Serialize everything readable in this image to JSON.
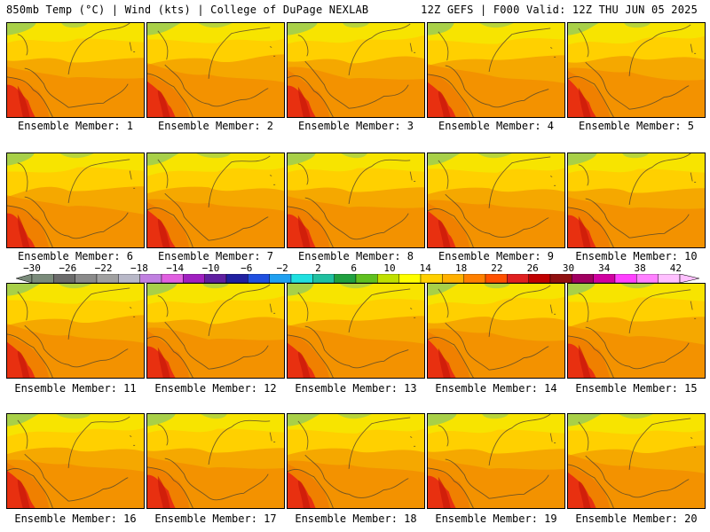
{
  "header": {
    "left": "850mb Temp (°C) | Wind (kts) | College of DuPage NEXLAB",
    "right": "12Z GEFS | F000 Valid: 12Z THU JUN 05 2025"
  },
  "members": [
    "Ensemble Member: 1",
    "Ensemble Member: 2",
    "Ensemble Member: 3",
    "Ensemble Member: 4",
    "Ensemble Member: 5",
    "Ensemble Member: 6",
    "Ensemble Member: 7",
    "Ensemble Member: 8",
    "Ensemble Member: 9",
    "Ensemble Member: 10",
    "Ensemble Member: 11",
    "Ensemble Member: 12",
    "Ensemble Member: 13",
    "Ensemble Member: 14",
    "Ensemble Member: 15",
    "Ensemble Member: 16",
    "Ensemble Member: 17",
    "Ensemble Member: 18",
    "Ensemble Member: 19",
    "Ensemble Member: 20"
  ],
  "colorbar": {
    "ticks": [
      "−30",
      "−26",
      "−22",
      "−18",
      "−14",
      "−10",
      "−6",
      "−2",
      "2",
      "6",
      "10",
      "14",
      "18",
      "22",
      "26",
      "30",
      "34",
      "38",
      "42"
    ],
    "colors": [
      "#7a8b7a",
      "#6b6b6b",
      "#8a8a8a",
      "#a0a0a0",
      "#b8b8c8",
      "#c080e0",
      "#e060e0",
      "#a020c0",
      "#6020a0",
      "#2020a0",
      "#2050e0",
      "#20a0f0",
      "#20e0e0",
      "#20c0a0",
      "#20a040",
      "#60c020",
      "#c0e000",
      "#ffff00",
      "#ffd000",
      "#ffb000",
      "#ff8000",
      "#ff5000",
      "#e02020",
      "#c00000",
      "#901010",
      "#a00060",
      "#d000a0",
      "#ff40ff",
      "#ff80ff",
      "#ffc0ff"
    ]
  },
  "map_colors": {
    "light": "#f7e400",
    "yellow": "#ffd000",
    "orange": "#f5a800",
    "darkorange": "#f08000",
    "red": "#e83010",
    "green": "#a8d048"
  }
}
